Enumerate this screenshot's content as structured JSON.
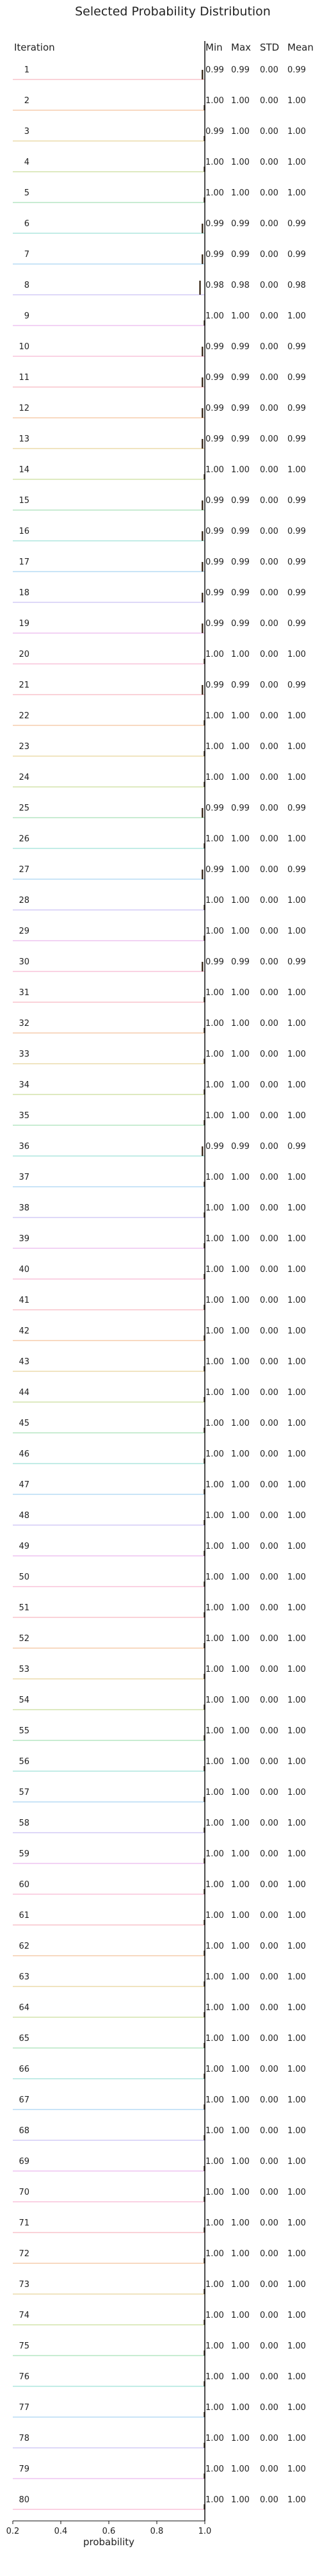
{
  "chart_data": {
    "type": "ridgeline",
    "title": "Selected Probability Distribution",
    "row_header": "Iteration",
    "stat_headers": [
      "Min",
      "Max",
      "STD",
      "Mean"
    ],
    "xlabel": "probability",
    "xlim": [
      0.2,
      1.0
    ],
    "xticks": [
      "0.2",
      "0.4",
      "0.6",
      "0.8",
      "1.0"
    ],
    "rows": [
      {
        "iteration": "1",
        "min": "0.99",
        "max": "0.99",
        "std": "0.00",
        "mean": "0.99"
      },
      {
        "iteration": "2",
        "min": "1.00",
        "max": "1.00",
        "std": "0.00",
        "mean": "1.00"
      },
      {
        "iteration": "3",
        "min": "0.99",
        "max": "1.00",
        "std": "0.00",
        "mean": "1.00"
      },
      {
        "iteration": "4",
        "min": "1.00",
        "max": "1.00",
        "std": "0.00",
        "mean": "1.00"
      },
      {
        "iteration": "5",
        "min": "1.00",
        "max": "1.00",
        "std": "0.00",
        "mean": "1.00"
      },
      {
        "iteration": "6",
        "min": "0.99",
        "max": "0.99",
        "std": "0.00",
        "mean": "0.99"
      },
      {
        "iteration": "7",
        "min": "0.99",
        "max": "0.99",
        "std": "0.00",
        "mean": "0.99"
      },
      {
        "iteration": "8",
        "min": "0.98",
        "max": "0.98",
        "std": "0.00",
        "mean": "0.98"
      },
      {
        "iteration": "9",
        "min": "1.00",
        "max": "1.00",
        "std": "0.00",
        "mean": "1.00"
      },
      {
        "iteration": "10",
        "min": "0.99",
        "max": "0.99",
        "std": "0.00",
        "mean": "0.99"
      },
      {
        "iteration": "11",
        "min": "0.99",
        "max": "0.99",
        "std": "0.00",
        "mean": "0.99"
      },
      {
        "iteration": "12",
        "min": "0.99",
        "max": "0.99",
        "std": "0.00",
        "mean": "0.99"
      },
      {
        "iteration": "13",
        "min": "0.99",
        "max": "0.99",
        "std": "0.00",
        "mean": "0.99"
      },
      {
        "iteration": "14",
        "min": "1.00",
        "max": "1.00",
        "std": "0.00",
        "mean": "1.00"
      },
      {
        "iteration": "15",
        "min": "0.99",
        "max": "0.99",
        "std": "0.00",
        "mean": "0.99"
      },
      {
        "iteration": "16",
        "min": "0.99",
        "max": "0.99",
        "std": "0.00",
        "mean": "0.99"
      },
      {
        "iteration": "17",
        "min": "0.99",
        "max": "0.99",
        "std": "0.00",
        "mean": "0.99"
      },
      {
        "iteration": "18",
        "min": "0.99",
        "max": "0.99",
        "std": "0.00",
        "mean": "0.99"
      },
      {
        "iteration": "19",
        "min": "0.99",
        "max": "0.99",
        "std": "0.00",
        "mean": "0.99"
      },
      {
        "iteration": "20",
        "min": "1.00",
        "max": "1.00",
        "std": "0.00",
        "mean": "1.00"
      },
      {
        "iteration": "21",
        "min": "0.99",
        "max": "0.99",
        "std": "0.00",
        "mean": "0.99"
      },
      {
        "iteration": "22",
        "min": "1.00",
        "max": "1.00",
        "std": "0.00",
        "mean": "1.00"
      },
      {
        "iteration": "23",
        "min": "1.00",
        "max": "1.00",
        "std": "0.00",
        "mean": "1.00"
      },
      {
        "iteration": "24",
        "min": "1.00",
        "max": "1.00",
        "std": "0.00",
        "mean": "1.00"
      },
      {
        "iteration": "25",
        "min": "0.99",
        "max": "0.99",
        "std": "0.00",
        "mean": "0.99"
      },
      {
        "iteration": "26",
        "min": "1.00",
        "max": "1.00",
        "std": "0.00",
        "mean": "1.00"
      },
      {
        "iteration": "27",
        "min": "0.99",
        "max": "1.00",
        "std": "0.00",
        "mean": "0.99"
      },
      {
        "iteration": "28",
        "min": "1.00",
        "max": "1.00",
        "std": "0.00",
        "mean": "1.00"
      },
      {
        "iteration": "29",
        "min": "1.00",
        "max": "1.00",
        "std": "0.00",
        "mean": "1.00"
      },
      {
        "iteration": "30",
        "min": "0.99",
        "max": "0.99",
        "std": "0.00",
        "mean": "0.99"
      },
      {
        "iteration": "31",
        "min": "1.00",
        "max": "1.00",
        "std": "0.00",
        "mean": "1.00"
      },
      {
        "iteration": "32",
        "min": "1.00",
        "max": "1.00",
        "std": "0.00",
        "mean": "1.00"
      },
      {
        "iteration": "33",
        "min": "1.00",
        "max": "1.00",
        "std": "0.00",
        "mean": "1.00"
      },
      {
        "iteration": "34",
        "min": "1.00",
        "max": "1.00",
        "std": "0.00",
        "mean": "1.00"
      },
      {
        "iteration": "35",
        "min": "1.00",
        "max": "1.00",
        "std": "0.00",
        "mean": "1.00"
      },
      {
        "iteration": "36",
        "min": "0.99",
        "max": "0.99",
        "std": "0.00",
        "mean": "0.99"
      },
      {
        "iteration": "37",
        "min": "1.00",
        "max": "1.00",
        "std": "0.00",
        "mean": "1.00"
      },
      {
        "iteration": "38",
        "min": "1.00",
        "max": "1.00",
        "std": "0.00",
        "mean": "1.00"
      },
      {
        "iteration": "39",
        "min": "1.00",
        "max": "1.00",
        "std": "0.00",
        "mean": "1.00"
      },
      {
        "iteration": "40",
        "min": "1.00",
        "max": "1.00",
        "std": "0.00",
        "mean": "1.00"
      },
      {
        "iteration": "41",
        "min": "1.00",
        "max": "1.00",
        "std": "0.00",
        "mean": "1.00"
      },
      {
        "iteration": "42",
        "min": "1.00",
        "max": "1.00",
        "std": "0.00",
        "mean": "1.00"
      },
      {
        "iteration": "43",
        "min": "1.00",
        "max": "1.00",
        "std": "0.00",
        "mean": "1.00"
      },
      {
        "iteration": "44",
        "min": "1.00",
        "max": "1.00",
        "std": "0.00",
        "mean": "1.00"
      },
      {
        "iteration": "45",
        "min": "1.00",
        "max": "1.00",
        "std": "0.00",
        "mean": "1.00"
      },
      {
        "iteration": "46",
        "min": "1.00",
        "max": "1.00",
        "std": "0.00",
        "mean": "1.00"
      },
      {
        "iteration": "47",
        "min": "1.00",
        "max": "1.00",
        "std": "0.00",
        "mean": "1.00"
      },
      {
        "iteration": "48",
        "min": "1.00",
        "max": "1.00",
        "std": "0.00",
        "mean": "1.00"
      },
      {
        "iteration": "49",
        "min": "1.00",
        "max": "1.00",
        "std": "0.00",
        "mean": "1.00"
      },
      {
        "iteration": "50",
        "min": "1.00",
        "max": "1.00",
        "std": "0.00",
        "mean": "1.00"
      },
      {
        "iteration": "51",
        "min": "1.00",
        "max": "1.00",
        "std": "0.00",
        "mean": "1.00"
      },
      {
        "iteration": "52",
        "min": "1.00",
        "max": "1.00",
        "std": "0.00",
        "mean": "1.00"
      },
      {
        "iteration": "53",
        "min": "1.00",
        "max": "1.00",
        "std": "0.00",
        "mean": "1.00"
      },
      {
        "iteration": "54",
        "min": "1.00",
        "max": "1.00",
        "std": "0.00",
        "mean": "1.00"
      },
      {
        "iteration": "55",
        "min": "1.00",
        "max": "1.00",
        "std": "0.00",
        "mean": "1.00"
      },
      {
        "iteration": "56",
        "min": "1.00",
        "max": "1.00",
        "std": "0.00",
        "mean": "1.00"
      },
      {
        "iteration": "57",
        "min": "1.00",
        "max": "1.00",
        "std": "0.00",
        "mean": "1.00"
      },
      {
        "iteration": "58",
        "min": "1.00",
        "max": "1.00",
        "std": "0.00",
        "mean": "1.00"
      },
      {
        "iteration": "59",
        "min": "1.00",
        "max": "1.00",
        "std": "0.00",
        "mean": "1.00"
      },
      {
        "iteration": "60",
        "min": "1.00",
        "max": "1.00",
        "std": "0.00",
        "mean": "1.00"
      },
      {
        "iteration": "61",
        "min": "1.00",
        "max": "1.00",
        "std": "0.00",
        "mean": "1.00"
      },
      {
        "iteration": "62",
        "min": "1.00",
        "max": "1.00",
        "std": "0.00",
        "mean": "1.00"
      },
      {
        "iteration": "63",
        "min": "1.00",
        "max": "1.00",
        "std": "0.00",
        "mean": "1.00"
      },
      {
        "iteration": "64",
        "min": "1.00",
        "max": "1.00",
        "std": "0.00",
        "mean": "1.00"
      },
      {
        "iteration": "65",
        "min": "1.00",
        "max": "1.00",
        "std": "0.00",
        "mean": "1.00"
      },
      {
        "iteration": "66",
        "min": "1.00",
        "max": "1.00",
        "std": "0.00",
        "mean": "1.00"
      },
      {
        "iteration": "67",
        "min": "1.00",
        "max": "1.00",
        "std": "0.00",
        "mean": "1.00"
      },
      {
        "iteration": "68",
        "min": "1.00",
        "max": "1.00",
        "std": "0.00",
        "mean": "1.00"
      },
      {
        "iteration": "69",
        "min": "1.00",
        "max": "1.00",
        "std": "0.00",
        "mean": "1.00"
      },
      {
        "iteration": "70",
        "min": "1.00",
        "max": "1.00",
        "std": "0.00",
        "mean": "1.00"
      },
      {
        "iteration": "71",
        "min": "1.00",
        "max": "1.00",
        "std": "0.00",
        "mean": "1.00"
      },
      {
        "iteration": "72",
        "min": "1.00",
        "max": "1.00",
        "std": "0.00",
        "mean": "1.00"
      },
      {
        "iteration": "73",
        "min": "1.00",
        "max": "1.00",
        "std": "0.00",
        "mean": "1.00"
      },
      {
        "iteration": "74",
        "min": "1.00",
        "max": "1.00",
        "std": "0.00",
        "mean": "1.00"
      },
      {
        "iteration": "75",
        "min": "1.00",
        "max": "1.00",
        "std": "0.00",
        "mean": "1.00"
      },
      {
        "iteration": "76",
        "min": "1.00",
        "max": "1.00",
        "std": "0.00",
        "mean": "1.00"
      },
      {
        "iteration": "77",
        "min": "1.00",
        "max": "1.00",
        "std": "0.00",
        "mean": "1.00"
      },
      {
        "iteration": "78",
        "min": "1.00",
        "max": "1.00",
        "std": "0.00",
        "mean": "1.00"
      },
      {
        "iteration": "79",
        "min": "1.00",
        "max": "1.00",
        "std": "0.00",
        "mean": "1.00"
      },
      {
        "iteration": "80",
        "min": "1.00",
        "max": "1.00",
        "std": "0.00",
        "mean": "1.00"
      }
    ],
    "grid": false,
    "legend": "none",
    "colors": {
      "text": "#222222",
      "axis": "#111111",
      "density": "#3a2a1a",
      "row_palette": [
        "#f7b7c0",
        "#f4c29c",
        "#e6d39a",
        "#c9dd9a",
        "#a6e0b8",
        "#9ee0d8",
        "#a9d4f2",
        "#c9c0f4",
        "#eab8ee",
        "#f6b6d2"
      ]
    }
  }
}
